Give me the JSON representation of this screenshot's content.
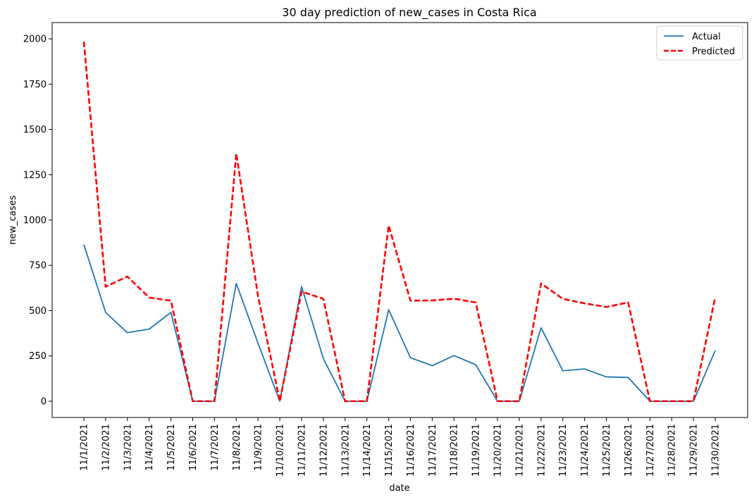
{
  "chart_data": {
    "type": "line",
    "title": "30 day prediction of new_cases in Costa Rica",
    "xlabel": "date",
    "ylabel": "new_cases",
    "ylim": [
      -90,
      2090
    ],
    "yticks": [
      0,
      250,
      500,
      750,
      1000,
      1250,
      1500,
      1750,
      2000
    ],
    "grid": false,
    "legend_position": "top-right",
    "categories": [
      "11/1/2021",
      "11/2/2021",
      "11/3/2021",
      "11/4/2021",
      "11/5/2021",
      "11/6/2021",
      "11/7/2021",
      "11/8/2021",
      "11/9/2021",
      "11/10/2021",
      "11/11/2021",
      "11/12/2021",
      "11/13/2021",
      "11/14/2021",
      "11/15/2021",
      "11/16/2021",
      "11/17/2021",
      "11/18/2021",
      "11/19/2021",
      "11/20/2021",
      "11/21/2021",
      "11/22/2021",
      "11/23/2021",
      "11/24/2021",
      "11/25/2021",
      "11/26/2021",
      "11/27/2021",
      "11/28/2021",
      "11/29/2021",
      "11/30/2021"
    ],
    "series": [
      {
        "name": "Actual",
        "color": "#1f77b4",
        "style": "solid",
        "values": [
          865,
          490,
          378,
          398,
          490,
          0,
          0,
          650,
          320,
          0,
          633,
          235,
          0,
          0,
          505,
          240,
          196,
          252,
          201,
          0,
          0,
          405,
          168,
          178,
          134,
          131,
          0,
          0,
          0,
          280
        ]
      },
      {
        "name": "Predicted",
        "color": "#ff0000",
        "style": "dashed",
        "values": [
          1985,
          632,
          688,
          572,
          555,
          0,
          0,
          1368,
          580,
          0,
          605,
          565,
          0,
          0,
          970,
          555,
          556,
          566,
          545,
          0,
          0,
          650,
          565,
          540,
          520,
          545,
          0,
          0,
          0,
          575
        ]
      }
    ]
  }
}
